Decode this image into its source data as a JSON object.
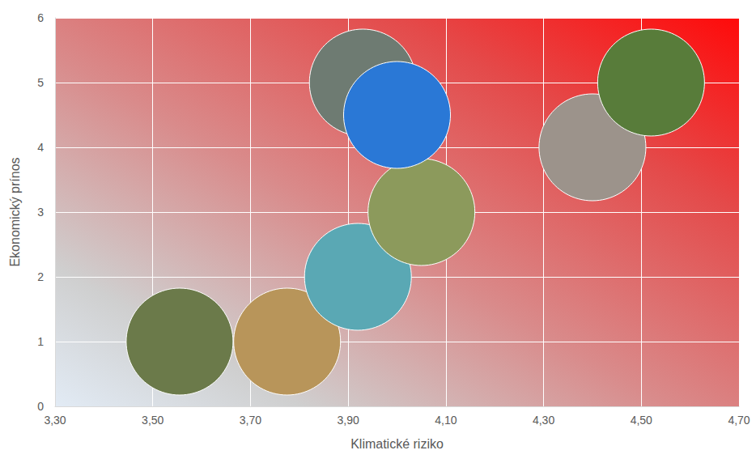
{
  "chart_data": {
    "type": "scatter",
    "x_label": "Klimatické riziko",
    "y_label": "Ekonomický prínos",
    "x": [
      3.555,
      3.775,
      3.92,
      4.05,
      3.93,
      4.0,
      4.4,
      4.52
    ],
    "values": [
      1.0,
      1.0,
      2.0,
      3.0,
      5.0,
      4.5,
      4.0,
      5.0
    ],
    "colors": [
      "#6b7a4a",
      "#b8955a",
      "#5aa8b4",
      "#8c9a5c",
      "#6e7b72",
      "#2a78d6",
      "#9c938b",
      "#587c3a"
    ],
    "marker": "circle",
    "xlim": [
      3.3,
      4.7
    ],
    "xticks": [
      {
        "value": 3.3,
        "label": "3,30"
      },
      {
        "value": 3.5,
        "label": "3,50"
      },
      {
        "value": 3.7,
        "label": "3,70"
      },
      {
        "value": 3.9,
        "label": "3,90"
      },
      {
        "value": 4.1,
        "label": "4,10"
      },
      {
        "value": 4.3,
        "label": "4,30"
      },
      {
        "value": 4.5,
        "label": "4,50"
      },
      {
        "value": 4.7,
        "label": "4,70"
      }
    ],
    "ylim": [
      0,
      6
    ],
    "yticks": [
      0,
      1,
      2,
      3,
      4,
      5,
      6
    ],
    "grid": true
  }
}
